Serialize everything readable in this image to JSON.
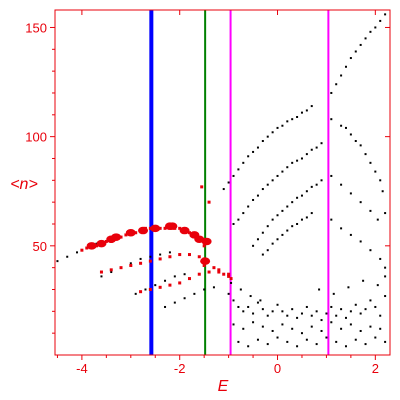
{
  "chart_data": {
    "type": "scatter",
    "title": "",
    "xlabel": "E",
    "ylabel": "<n>",
    "xlim": [
      -4.55,
      2.3
    ],
    "ylim": [
      0,
      158
    ],
    "xticks": [
      -4,
      -2,
      0,
      2
    ],
    "yticks": [
      50,
      100,
      150
    ],
    "xtick_labels": [
      "-4",
      "-2",
      "0",
      "2"
    ],
    "ytick_labels": [
      "50",
      "100",
      "150"
    ],
    "grid": false,
    "vertical_lines": [
      {
        "x": -2.58,
        "color": "#0000ff",
        "width": "thick"
      },
      {
        "x": -1.48,
        "color": "#008000",
        "width": "thin"
      },
      {
        "x": -0.96,
        "color": "#ff00ff",
        "width": "thin"
      },
      {
        "x": 1.04,
        "color": "#ff00ff",
        "width": "thin"
      }
    ],
    "series": [
      {
        "color": "#000000",
        "marker_size": 1,
        "points": [
          [
            -4.5,
            43
          ],
          [
            -4.3,
            45
          ],
          [
            -4.1,
            47
          ],
          [
            -3.9,
            49
          ],
          [
            -3.7,
            51
          ],
          [
            -3.6,
            36
          ],
          [
            -3.4,
            38
          ],
          [
            -3.2,
            40
          ],
          [
            -3.0,
            42
          ],
          [
            -2.8,
            44
          ],
          [
            -2.6,
            45
          ],
          [
            -2.4,
            46
          ],
          [
            -2.2,
            47
          ],
          [
            -2.9,
            28
          ],
          [
            -2.7,
            30
          ],
          [
            -2.5,
            32
          ],
          [
            -2.3,
            34
          ],
          [
            -2.1,
            36
          ],
          [
            -1.9,
            37
          ],
          [
            -2.3,
            22
          ],
          [
            -2.1,
            24
          ],
          [
            -1.9,
            26
          ],
          [
            -1.7,
            28
          ],
          [
            -1.5,
            30
          ],
          [
            -1.3,
            31
          ],
          [
            -1.1,
            76
          ],
          [
            -1.0,
            79
          ],
          [
            -0.9,
            82
          ],
          [
            -0.8,
            85
          ],
          [
            -0.7,
            88
          ],
          [
            -0.6,
            91
          ],
          [
            -0.5,
            93
          ],
          [
            -0.4,
            95
          ],
          [
            -0.3,
            98
          ],
          [
            -0.2,
            100
          ],
          [
            -0.1,
            102
          ],
          [
            0.0,
            104
          ],
          [
            0.1,
            105
          ],
          [
            0.2,
            107
          ],
          [
            0.3,
            108
          ],
          [
            0.4,
            109
          ],
          [
            0.5,
            111
          ],
          [
            0.6,
            112
          ],
          [
            0.7,
            114
          ],
          [
            -0.9,
            60
          ],
          [
            -0.8,
            62
          ],
          [
            -0.7,
            65
          ],
          [
            -0.6,
            68
          ],
          [
            -0.5,
            71
          ],
          [
            -0.4,
            73
          ],
          [
            -0.3,
            76
          ],
          [
            -0.2,
            78
          ],
          [
            -0.1,
            80
          ],
          [
            0.0,
            82
          ],
          [
            0.1,
            84
          ],
          [
            0.2,
            86
          ],
          [
            0.3,
            88
          ],
          [
            0.4,
            89
          ],
          [
            0.5,
            90
          ],
          [
            0.6,
            92
          ],
          [
            0.7,
            94
          ],
          [
            0.8,
            95
          ],
          [
            0.9,
            97
          ],
          [
            -0.5,
            50
          ],
          [
            -0.4,
            53
          ],
          [
            -0.3,
            56
          ],
          [
            -0.2,
            59
          ],
          [
            -0.1,
            62
          ],
          [
            0.0,
            64
          ],
          [
            0.1,
            66
          ],
          [
            0.2,
            68
          ],
          [
            0.3,
            70
          ],
          [
            0.4,
            72
          ],
          [
            0.5,
            73
          ],
          [
            0.6,
            75
          ],
          [
            0.7,
            77
          ],
          [
            0.8,
            78
          ],
          [
            0.9,
            80
          ],
          [
            -0.3,
            46
          ],
          [
            -0.2,
            48
          ],
          [
            -0.1,
            51
          ],
          [
            0.0,
            53
          ],
          [
            0.1,
            55
          ],
          [
            0.2,
            57
          ],
          [
            0.3,
            59
          ],
          [
            0.4,
            60
          ],
          [
            0.5,
            62
          ],
          [
            0.6,
            63
          ],
          [
            0.7,
            65
          ],
          [
            1.1,
            120
          ],
          [
            1.2,
            124
          ],
          [
            1.3,
            128
          ],
          [
            1.4,
            132
          ],
          [
            1.5,
            136
          ],
          [
            1.6,
            139
          ],
          [
            1.7,
            142
          ],
          [
            1.8,
            145
          ],
          [
            1.9,
            148
          ],
          [
            2.0,
            150
          ],
          [
            2.1,
            153
          ],
          [
            2.2,
            156
          ],
          [
            1.1,
            108
          ],
          [
            1.3,
            105
          ],
          [
            1.4,
            104
          ],
          [
            1.5,
            101
          ],
          [
            1.6,
            98
          ],
          [
            1.7,
            96
          ],
          [
            1.8,
            92
          ],
          [
            1.9,
            88
          ],
          [
            2.0,
            84
          ],
          [
            2.1,
            80
          ],
          [
            2.15,
            75
          ],
          [
            1.1,
            82
          ],
          [
            1.3,
            78
          ],
          [
            1.5,
            74
          ],
          [
            1.7,
            70
          ],
          [
            1.9,
            66
          ],
          [
            2.05,
            62
          ],
          [
            2.2,
            65
          ],
          [
            1.1,
            62
          ],
          [
            1.3,
            58
          ],
          [
            1.5,
            55
          ],
          [
            1.7,
            52
          ],
          [
            1.9,
            48
          ],
          [
            2.1,
            44
          ],
          [
            2.2,
            40
          ],
          [
            -1.0,
            28
          ],
          [
            -0.9,
            25
          ],
          [
            -0.8,
            22
          ],
          [
            -0.7,
            20
          ],
          [
            -0.6,
            22
          ],
          [
            -0.5,
            19
          ],
          [
            -0.4,
            24
          ],
          [
            -0.3,
            21
          ],
          [
            -0.2,
            18
          ],
          [
            -0.1,
            20
          ],
          [
            0.0,
            23
          ],
          [
            0.1,
            20
          ],
          [
            0.2,
            18
          ],
          [
            0.3,
            21
          ],
          [
            0.4,
            17
          ],
          [
            0.5,
            19
          ],
          [
            0.6,
            22
          ],
          [
            0.7,
            18
          ],
          [
            0.8,
            20
          ],
          [
            0.9,
            16
          ],
          [
            1.0,
            19
          ],
          [
            1.1,
            22
          ],
          [
            1.2,
            18
          ],
          [
            1.3,
            21
          ],
          [
            1.4,
            17
          ],
          [
            1.5,
            20
          ],
          [
            1.6,
            23
          ],
          [
            1.7,
            19
          ],
          [
            1.8,
            21
          ],
          [
            1.9,
            25
          ],
          [
            2.0,
            22
          ],
          [
            2.1,
            18
          ],
          [
            2.2,
            27
          ],
          [
            -0.9,
            14
          ],
          [
            -0.7,
            12
          ],
          [
            -0.5,
            15
          ],
          [
            -0.3,
            13
          ],
          [
            -0.1,
            11
          ],
          [
            0.1,
            14
          ],
          [
            0.3,
            12
          ],
          [
            0.5,
            10
          ],
          [
            0.7,
            13
          ],
          [
            0.9,
            11
          ],
          [
            1.1,
            15
          ],
          [
            1.3,
            12
          ],
          [
            1.5,
            14
          ],
          [
            1.7,
            11
          ],
          [
            1.9,
            13
          ],
          [
            2.1,
            12
          ],
          [
            -0.8,
            6
          ],
          [
            -0.6,
            4
          ],
          [
            -0.4,
            7
          ],
          [
            -0.2,
            5
          ],
          [
            0.0,
            8
          ],
          [
            0.2,
            6
          ],
          [
            0.4,
            4
          ],
          [
            0.6,
            7
          ],
          [
            0.8,
            5
          ],
          [
            1.0,
            8
          ],
          [
            1.2,
            6
          ],
          [
            1.4,
            4
          ],
          [
            1.6,
            7
          ],
          [
            1.8,
            5
          ],
          [
            2.0,
            8
          ],
          [
            2.2,
            6
          ],
          [
            -0.95,
            33
          ],
          [
            -0.75,
            30
          ],
          [
            -0.55,
            27
          ],
          [
            -0.35,
            25
          ],
          [
            0.85,
            30
          ],
          [
            1.15,
            28
          ],
          [
            1.45,
            31
          ],
          [
            1.75,
            34
          ],
          [
            2.05,
            32
          ],
          [
            2.2,
            36
          ]
        ]
      },
      {
        "color": "#e8000b",
        "marker_size": 2,
        "points": [
          [
            -4.0,
            48
          ],
          [
            -3.9,
            49
          ],
          [
            -3.8,
            50
          ],
          [
            -3.7,
            50
          ],
          [
            -3.6,
            51
          ],
          [
            -3.5,
            52
          ],
          [
            -3.4,
            52
          ],
          [
            -3.3,
            53
          ],
          [
            -3.2,
            54
          ],
          [
            -3.1,
            55
          ],
          [
            -3.0,
            56
          ],
          [
            -2.9,
            56
          ],
          [
            -2.8,
            57
          ],
          [
            -2.7,
            58
          ],
          [
            -2.6,
            58
          ],
          [
            -2.5,
            58
          ],
          [
            -2.4,
            58
          ],
          [
            -2.3,
            58
          ],
          [
            -2.2,
            58
          ],
          [
            -2.1,
            58
          ],
          [
            -2.0,
            58
          ],
          [
            -1.9,
            57
          ],
          [
            -1.8,
            56
          ],
          [
            -1.7,
            55
          ],
          [
            -1.6,
            53
          ],
          [
            -1.5,
            50
          ],
          [
            -3.6,
            38
          ],
          [
            -3.4,
            39
          ],
          [
            -3.2,
            40
          ],
          [
            -3.0,
            41
          ],
          [
            -2.8,
            42
          ],
          [
            -2.6,
            43
          ],
          [
            -2.4,
            44
          ],
          [
            -2.2,
            45
          ],
          [
            -2.0,
            46
          ],
          [
            -1.8,
            46
          ],
          [
            -1.6,
            45
          ],
          [
            -1.5,
            44
          ],
          [
            -2.8,
            29
          ],
          [
            -2.6,
            30
          ],
          [
            -2.4,
            31
          ],
          [
            -2.2,
            32
          ],
          [
            -2.0,
            33
          ],
          [
            -1.8,
            35
          ],
          [
            -1.6,
            37
          ],
          [
            -1.4,
            38
          ],
          [
            -1.2,
            38
          ],
          [
            -1.1,
            37
          ],
          [
            -1.0,
            36
          ],
          [
            -1.5,
            41
          ],
          [
            -1.3,
            40
          ],
          [
            -1.2,
            39
          ],
          [
            -1.4,
            70
          ],
          [
            -1.55,
            77
          ],
          [
            -1.0,
            37
          ],
          [
            -0.95,
            35
          ]
        ]
      },
      {
        "color": "#e8000b",
        "marker_size": 5,
        "points": [
          [
            -3.8,
            50
          ],
          [
            -3.6,
            51
          ],
          [
            -3.4,
            53
          ],
          [
            -3.3,
            54
          ],
          [
            -3.0,
            56
          ],
          [
            -2.75,
            57
          ],
          [
            -2.5,
            58
          ],
          [
            -2.2,
            59
          ],
          [
            -2.15,
            59
          ],
          [
            -1.9,
            57
          ],
          [
            -1.7,
            55
          ],
          [
            -1.6,
            53
          ],
          [
            -1.45,
            52
          ],
          [
            -1.48,
            43
          ]
        ]
      }
    ]
  }
}
